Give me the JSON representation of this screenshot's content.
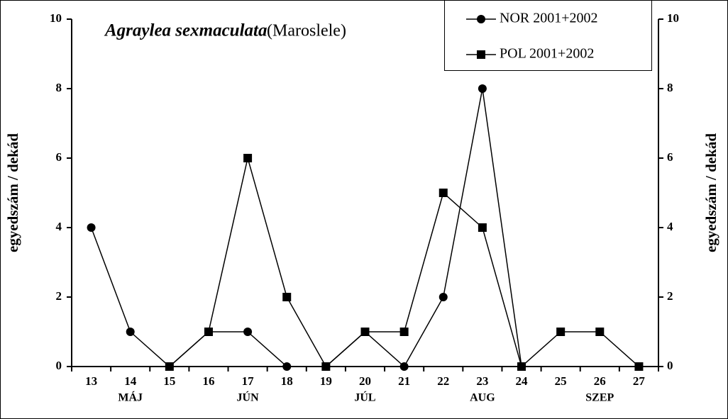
{
  "chart_data": {
    "type": "line",
    "title": "Agraylea sexmaculata",
    "subtitle": "(Maroslele)",
    "y_label": "egyedszám / dekád",
    "y2_label": "egyedszám / dekád",
    "categories": [
      "13",
      "14",
      "15",
      "16",
      "17",
      "18",
      "19",
      "20",
      "21",
      "22",
      "23",
      "24",
      "25",
      "26",
      "27"
    ],
    "month_labels": [
      null,
      "MÁJ",
      null,
      null,
      "JÚN",
      null,
      null,
      "JÚL",
      null,
      null,
      "AUG",
      null,
      null,
      "SZEP",
      null
    ],
    "series": [
      {
        "name": "NOR 2001+2002",
        "color": "#000000",
        "marker": "circle",
        "values": [
          4,
          1,
          0,
          1,
          1,
          0,
          0,
          1,
          0,
          2,
          8,
          0,
          null,
          null,
          null
        ]
      },
      {
        "name": "POL 2001+2002",
        "color": "#000000",
        "marker": "square",
        "values": [
          null,
          null,
          0,
          1,
          6,
          2,
          0,
          1,
          1,
          5,
          4,
          0,
          1,
          1,
          0
        ]
      }
    ],
    "ylim": [
      0,
      10
    ],
    "yticks": [
      0,
      2,
      4,
      6,
      8,
      10
    ],
    "y2lim": [
      0,
      10
    ],
    "y2ticks": [
      0,
      2,
      4,
      6,
      8,
      10
    ],
    "legend": "top-right"
  }
}
